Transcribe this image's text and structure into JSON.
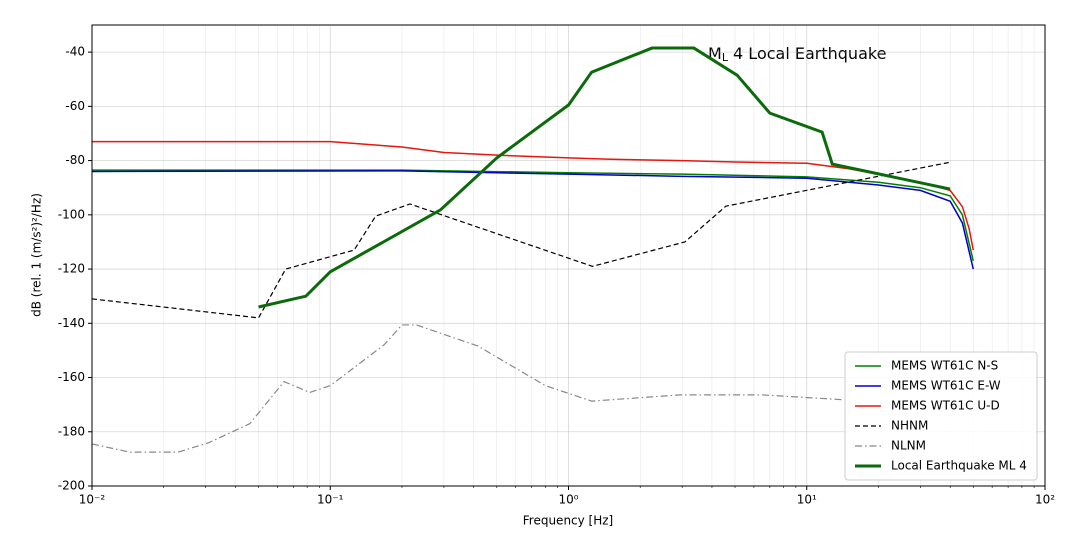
{
  "chart_data": {
    "type": "line",
    "x_label": "Frequency [Hz]",
    "y_label": "dB (rel. 1 (m/s²)²/Hz)",
    "annotation": {
      "main": "M",
      "sub": "L",
      "rest": " 4 Local Earthquake",
      "color": "#556b2f"
    },
    "xscale": "log",
    "grid": true,
    "minor_grid": true,
    "legend": "lower right",
    "xlim": [
      0.01,
      100
    ],
    "ylim": [
      -200,
      -30
    ],
    "xticks": [
      {
        "value": 0.01,
        "label": "10⁻²"
      },
      {
        "value": 0.1,
        "label": "10⁻¹"
      },
      {
        "value": 1,
        "label": "10⁰"
      },
      {
        "value": 10,
        "label": "10¹"
      },
      {
        "value": 100,
        "label": "10²"
      }
    ],
    "yticks": [
      -200,
      -180,
      -160,
      -140,
      -120,
      -100,
      -80,
      -60,
      -40
    ],
    "series": [
      {
        "name": "MEMS WT61C N-S",
        "color": "#008000",
        "width": 1.5,
        "dash": "solid",
        "x": [
          0.01,
          0.2,
          1,
          3,
          10,
          20,
          30,
          40,
          45,
          50
        ],
        "values": [
          -83.5,
          -83.5,
          -84.5,
          -85,
          -86,
          -88,
          -90,
          -93,
          -100,
          -117
        ]
      },
      {
        "name": "MEMS WT61C E-W",
        "color": "#0000cc",
        "width": 1.5,
        "dash": "solid",
        "x": [
          0.01,
          0.2,
          1,
          3,
          10,
          20,
          30,
          40,
          45,
          50
        ],
        "values": [
          -84,
          -83.8,
          -85,
          -85.8,
          -86.5,
          -89,
          -91,
          -95,
          -103,
          -120
        ]
      },
      {
        "name": "MEMS WT61C U-D",
        "color": "#e8160f",
        "width": 1.5,
        "dash": "solid",
        "x": [
          0.01,
          0.1,
          0.2,
          0.3,
          0.5,
          1,
          1.5,
          3,
          5,
          10,
          15,
          20,
          30,
          40,
          45,
          48,
          50
        ],
        "values": [
          -73,
          -73,
          -75,
          -77,
          -78,
          -79,
          -79.5,
          -80,
          -80.5,
          -81,
          -83,
          -85,
          -88,
          -91,
          -97,
          -105,
          -113
        ]
      },
      {
        "name": "NHNM",
        "color": "#000000",
        "width": 1.2,
        "dash": "dashed",
        "x": [
          0.01,
          0.05,
          0.065,
          0.126,
          0.155,
          0.216,
          1.26,
          3.08,
          4.58,
          40
        ],
        "values": [
          -131,
          -138,
          -120,
          -113,
          -100.5,
          -96,
          -119,
          -110,
          -96.8,
          -80.6
        ]
      },
      {
        "name": "NLNM",
        "color": "#888888",
        "width": 1.2,
        "dash": "dashdot",
        "x": [
          0.01,
          0.0144,
          0.023,
          0.031,
          0.046,
          0.064,
          0.082,
          0.1,
          0.168,
          0.2,
          0.23,
          0.417,
          0.8,
          1.25,
          2.94,
          6.5,
          15
        ],
        "values": [
          -184.5,
          -187.5,
          -187.5,
          -184,
          -177,
          -161.5,
          -165.5,
          -163,
          -148,
          -140.6,
          -140.6,
          -148.4,
          -163,
          -168.7,
          -166.4,
          -166.4,
          -168.3
        ]
      },
      {
        "name": "Local Earthquake ML 4",
        "color": "#0b6b0b",
        "width": 3,
        "dash": "solid",
        "x": [
          0.05,
          0.079,
          0.1,
          0.29,
          0.5,
          1,
          1.25,
          2.24,
          3.36,
          5.1,
          7,
          11.6,
          12.8,
          40
        ],
        "values": [
          -134,
          -130,
          -121,
          -98.2,
          -79,
          -59.5,
          -47.4,
          -38.5,
          -38.5,
          -48.5,
          -62.5,
          -69.5,
          -81.3,
          -90.5
        ]
      }
    ]
  }
}
